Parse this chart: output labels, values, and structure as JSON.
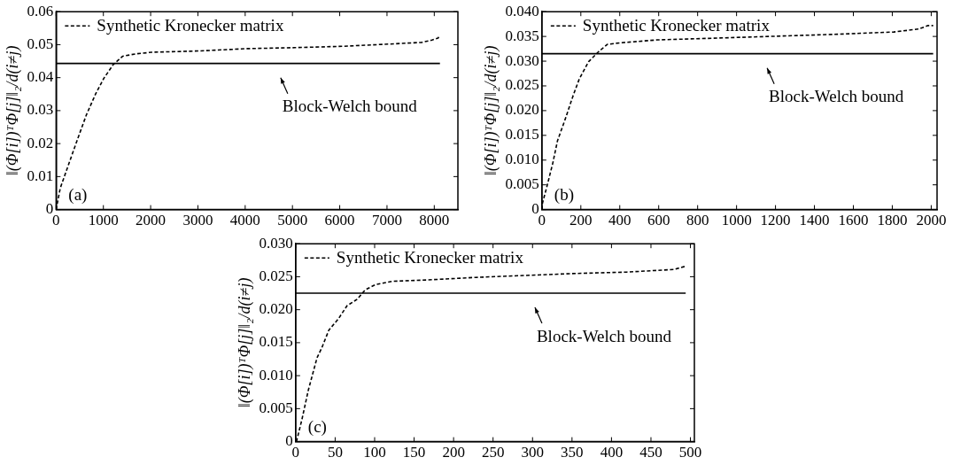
{
  "chart_data": [
    {
      "type": "line",
      "ylabel": "‖(Φ[i])ᵀΦ[j]‖₂/d(i≠j)",
      "xlim": [
        0,
        8500
      ],
      "xticks": [
        0,
        1000,
        2000,
        3000,
        4000,
        5000,
        6000,
        7000,
        8000
      ],
      "ylim": [
        0,
        0.06
      ],
      "yticks": [
        0,
        0.01,
        0.02,
        0.03,
        0.04,
        0.05,
        0.06
      ],
      "grid": false,
      "legend": "top left",
      "marker": "none",
      "annotations": [
        "(a)",
        {
          "text": "Block-Welch bound",
          "x": 4750,
          "y": 0.0443
        }
      ],
      "series": [
        {
          "name": "Synthetic Kronecker matrix",
          "color": "#000000",
          "line_style": "dashed",
          "x": [
            0,
            88,
            270,
            440,
            640,
            840,
            1010,
            1210,
            1410,
            1680,
            2020,
            3030,
            4040,
            5050,
            6060,
            7070,
            7740,
            7950,
            8080,
            8120
          ],
          "values": [
            0,
            0.0065,
            0.0139,
            0.0208,
            0.0287,
            0.0352,
            0.0398,
            0.044,
            0.0465,
            0.0472,
            0.0477,
            0.0481,
            0.0488,
            0.0491,
            0.0495,
            0.0502,
            0.0507,
            0.0514,
            0.052,
            0.0528
          ]
        },
        {
          "color": "#000000",
          "line_style": "solid",
          "x": [
            0,
            8120
          ],
          "values": [
            0.0443,
            0.0443
          ]
        }
      ]
    },
    {
      "type": "line",
      "ylabel": "‖(Φ[i])ᵀΦ[j]‖₂/d(i≠j)",
      "xlim": [
        0,
        2030
      ],
      "xticks": [
        0,
        200,
        400,
        600,
        800,
        1000,
        1200,
        1400,
        1600,
        1800,
        2000
      ],
      "ylim": [
        0,
        0.04
      ],
      "yticks": [
        0,
        {
          "value": 0.005,
          "label": "0.005"
        },
        {
          "value": 0.01,
          "label": "0.010"
        },
        {
          "value": 0.015,
          "label": "0.015"
        },
        {
          "value": 0.02,
          "label": "0.020"
        },
        {
          "value": 0.025,
          "label": "0.025"
        },
        {
          "value": 0.03,
          "label": "0.030"
        },
        {
          "value": 0.035,
          "label": "0.035"
        },
        {
          "value": 0.04,
          "label": "0.040"
        }
      ],
      "grid": false,
      "legend": "top left",
      "marker": "none",
      "annotations": [
        "(b)",
        {
          "text": "Block-Welch bound",
          "x": 1157,
          "y": 0.0315
        }
      ],
      "series": [
        {
          "name": "Synthetic Kronecker matrix",
          "color": "#000000",
          "line_style": "dashed",
          "x": [
            0,
            3,
            24,
            56,
            80,
            120,
            160,
            192,
            240,
            288,
            336,
            400,
            592,
            848,
            1168,
            1488,
            1808,
            1936,
            1984,
            2010
          ],
          "values": [
            0,
            0.0013,
            0.0044,
            0.0094,
            0.0139,
            0.0183,
            0.023,
            0.0264,
            0.0299,
            0.0318,
            0.0334,
            0.0337,
            0.0343,
            0.0346,
            0.035,
            0.0354,
            0.0359,
            0.0365,
            0.0372,
            0.0372
          ]
        },
        {
          "color": "#000000",
          "line_style": "solid",
          "x": [
            0,
            2010
          ],
          "values": [
            0.0315,
            0.0315
          ]
        }
      ]
    },
    {
      "type": "line",
      "ylabel": "‖(Φ[i])ᵀΦ[j]‖₂/d(i≠j)",
      "xlim": [
        0,
        505
      ],
      "xticks": [
        0,
        50,
        100,
        150,
        200,
        250,
        300,
        350,
        400,
        450,
        500
      ],
      "ylim": [
        0,
        0.03
      ],
      "yticks": [
        0,
        {
          "value": 0.005,
          "label": "0.005"
        },
        {
          "value": 0.01,
          "label": "0.010"
        },
        {
          "value": 0.015,
          "label": "0.015"
        },
        {
          "value": 0.02,
          "label": "0.020"
        },
        {
          "value": 0.025,
          "label": "0.025"
        },
        {
          "value": 0.03,
          "label": "0.030"
        }
      ],
      "grid": false,
      "legend": "top left",
      "marker": "none",
      "annotations": [
        "(c)",
        {
          "text": "Block-Welch bound",
          "x": 303,
          "y": 0.0225
        }
      ],
      "series": [
        {
          "name": "Synthetic Kronecker matrix",
          "color": "#000000",
          "line_style": "dashed",
          "x": [
            1,
            8,
            16,
            27,
            33,
            42,
            54,
            65,
            78,
            88,
            101,
            122,
            165,
            228,
            292,
            356,
            419,
            479,
            494
          ],
          "values": [
            0,
            0.0034,
            0.0078,
            0.0127,
            0.0142,
            0.0169,
            0.0186,
            0.0206,
            0.0216,
            0.023,
            0.0238,
            0.0243,
            0.0245,
            0.0249,
            0.0252,
            0.0255,
            0.0257,
            0.0261,
            0.0266
          ]
        },
        {
          "color": "#000000",
          "line_style": "solid",
          "x": [
            0,
            494
          ],
          "values": [
            0.0225,
            0.0225
          ]
        }
      ]
    }
  ]
}
